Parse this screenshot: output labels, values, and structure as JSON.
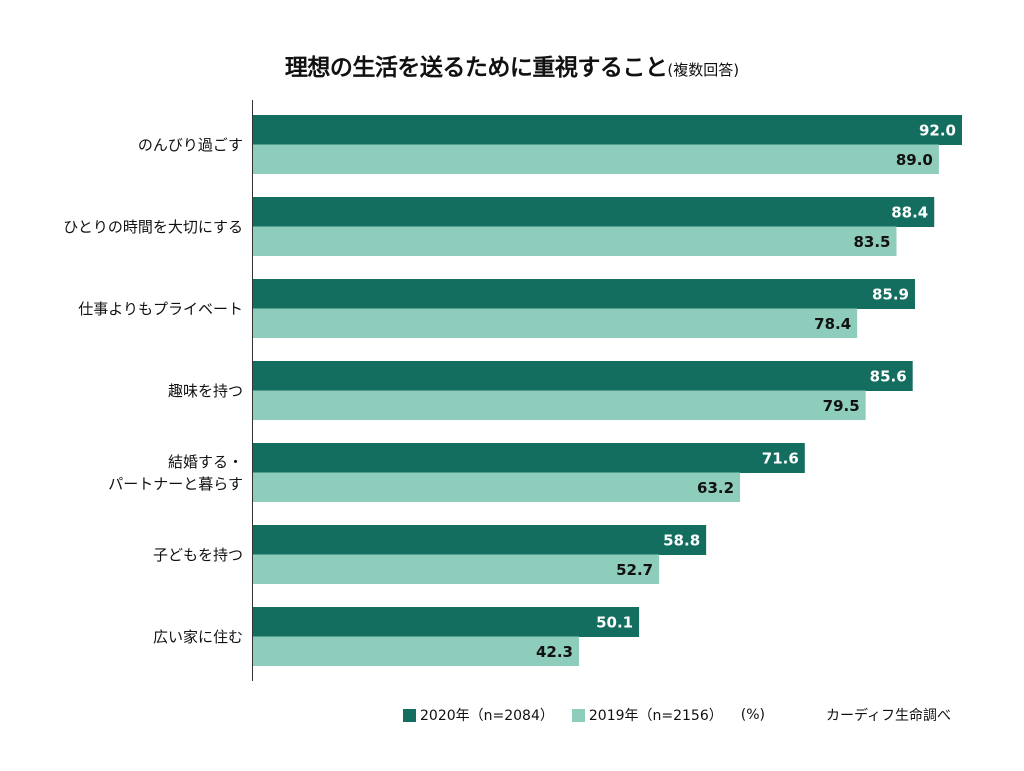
{
  "chart_data": {
    "type": "bar",
    "orientation": "horizontal",
    "title": "理想の生活を送るために重視すること",
    "subtitle": "(複数回答)",
    "categories": [
      "のんびり過ごす",
      "ひとりの時間を大切にする",
      "仕事よりもプライベート",
      "趣味を持つ",
      "結婚する・\nパートナーと暮らす",
      "子どもを持つ",
      "広い家に住む"
    ],
    "series": [
      {
        "name": "2020年（n=2084）",
        "color": "#136e60",
        "values": [
          92.0,
          88.4,
          85.9,
          85.6,
          71.6,
          58.8,
          50.1
        ],
        "labels": [
          "92.0",
          "88.4",
          "85.9",
          "85.6",
          "71.6",
          "58.8",
          "50.1"
        ]
      },
      {
        "name": "2019年（n=2156）",
        "color": "#8ecdbc",
        "values": [
          89.0,
          83.5,
          78.4,
          79.5,
          63.2,
          52.7,
          42.3
        ],
        "labels": [
          "89.0",
          "83.5",
          "78.4",
          "79.5",
          "63.2",
          "52.7",
          "42.3"
        ]
      }
    ],
    "xlim": [
      0,
      92
    ],
    "unit": "(%)",
    "grid": false,
    "legend_position": "bottom",
    "source": "カーディフ生命調べ"
  }
}
